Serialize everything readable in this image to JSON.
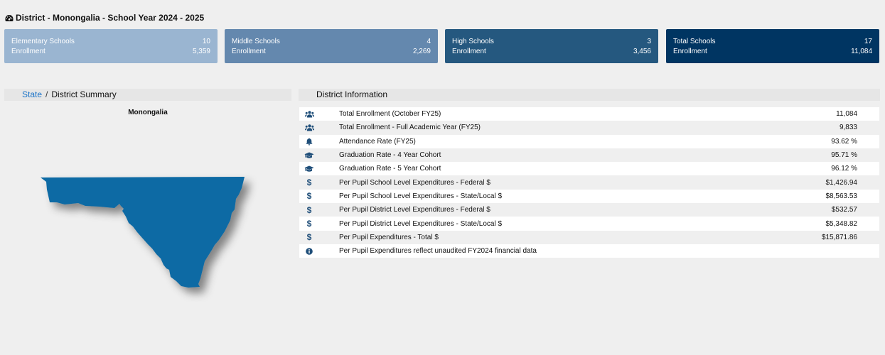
{
  "title": "District - Monongalia - School Year 2024 - 2025",
  "cards": [
    {
      "label": "Elementary Schools",
      "count": "10",
      "sub_label": "Enrollment",
      "sub_value": "5,359"
    },
    {
      "label": "Middle Schools",
      "count": "4",
      "sub_label": "Enrollment",
      "sub_value": "2,269"
    },
    {
      "label": "High Schools",
      "count": "3",
      "sub_label": "Enrollment",
      "sub_value": "3,456"
    },
    {
      "label": "Total Schools",
      "count": "17",
      "sub_label": "Enrollment",
      "sub_value": "11,084"
    }
  ],
  "breadcrumb": {
    "state": "State",
    "separator": "/",
    "current": "District Summary"
  },
  "map": {
    "county_name": "Monongalia",
    "fill_color": "#0f6aa4"
  },
  "district_info": {
    "header": "District Information",
    "rows": [
      {
        "icon": "users-icon",
        "label": "Total Enrollment (October FY25)",
        "value": "11,084"
      },
      {
        "icon": "users-icon",
        "label": "Total Enrollment - Full Academic Year (FY25)",
        "value": "9,833"
      },
      {
        "icon": "bell-icon",
        "label": "Attendance Rate (FY25)",
        "value": "93.62 %"
      },
      {
        "icon": "graduation-cap-icon",
        "label": "Graduation Rate - 4 Year Cohort",
        "value": "95.71 %"
      },
      {
        "icon": "graduation-cap-icon",
        "label": "Graduation Rate - 5 Year Cohort",
        "value": "96.12 %"
      },
      {
        "icon": "dollar-icon",
        "label": "Per Pupil School Level Expenditures - Federal $",
        "value": "$1,426.94"
      },
      {
        "icon": "dollar-icon",
        "label": "Per Pupil School Level Expenditures - State/Local $",
        "value": "$8,563.53"
      },
      {
        "icon": "dollar-icon",
        "label": "Per Pupil District Level Expenditures - Federal $",
        "value": "$532.57"
      },
      {
        "icon": "dollar-icon",
        "label": "Per Pupil District Level Expenditures - State/Local $",
        "value": "$5,348.82"
      },
      {
        "icon": "dollar-icon",
        "label": "Per Pupil Expenditures - Total $",
        "value": "$15,871.86"
      },
      {
        "icon": "info-circle-icon",
        "label": "Per Pupil Expenditures reflect unaudited FY2024 financial data",
        "value": ""
      }
    ]
  }
}
